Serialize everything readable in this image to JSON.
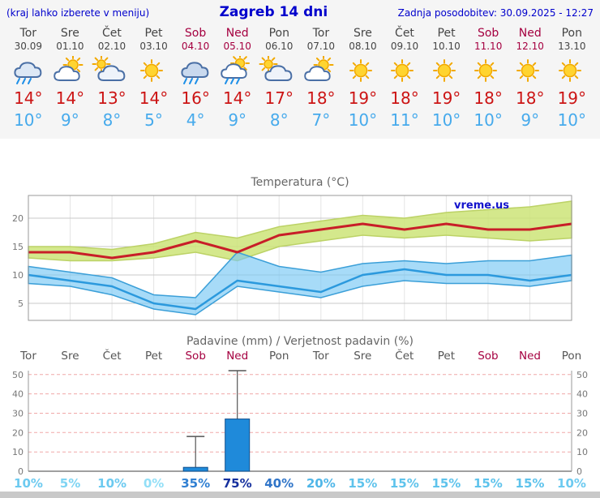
{
  "header": {
    "left_note": "(kraj lahko izberete v meniju)",
    "title": "Zagreb 14 dni",
    "updated": "Zadnja posodobitev: 30.09.2025 - 12:27"
  },
  "days": [
    {
      "name": "Tor",
      "date": "30.09",
      "icon": "rain-cloud",
      "tmax": "14°",
      "tmin": "10°",
      "weekend": false
    },
    {
      "name": "Sre",
      "date": "01.10",
      "icon": "partly-sunny",
      "tmax": "14°",
      "tmin": "9°",
      "weekend": false
    },
    {
      "name": "Čet",
      "date": "02.10",
      "icon": "mostly-cloudy",
      "tmax": "13°",
      "tmin": "8°",
      "weekend": false
    },
    {
      "name": "Pet",
      "date": "03.10",
      "icon": "sunny",
      "tmax": "14°",
      "tmin": "5°",
      "weekend": false
    },
    {
      "name": "Sob",
      "date": "04.10",
      "icon": "rain",
      "tmax": "16°",
      "tmin": "4°",
      "weekend": true
    },
    {
      "name": "Ned",
      "date": "05.10",
      "icon": "showers",
      "tmax": "14°",
      "tmin": "9°",
      "weekend": true
    },
    {
      "name": "Pon",
      "date": "06.10",
      "icon": "mostly-cloudy",
      "tmax": "17°",
      "tmin": "8°",
      "weekend": false
    },
    {
      "name": "Tor",
      "date": "07.10",
      "icon": "partly-sunny",
      "tmax": "18°",
      "tmin": "7°",
      "weekend": false
    },
    {
      "name": "Sre",
      "date": "08.10",
      "icon": "sunny",
      "tmax": "19°",
      "tmin": "10°",
      "weekend": false
    },
    {
      "name": "Čet",
      "date": "09.10",
      "icon": "sunny",
      "tmax": "18°",
      "tmin": "11°",
      "weekend": false
    },
    {
      "name": "Pet",
      "date": "10.10",
      "icon": "sunny",
      "tmax": "19°",
      "tmin": "10°",
      "weekend": false
    },
    {
      "name": "Sob",
      "date": "11.10",
      "icon": "sunny",
      "tmax": "18°",
      "tmin": "10°",
      "weekend": true
    },
    {
      "name": "Ned",
      "date": "12.10",
      "icon": "sunny",
      "tmax": "18°",
      "tmin": "9°",
      "weekend": true
    },
    {
      "name": "Pon",
      "date": "13.10",
      "icon": "sunny",
      "tmax": "19°",
      "tmin": "10°",
      "weekend": false
    }
  ],
  "chart_data": [
    {
      "type": "line",
      "title": "Temperatura (°C)",
      "watermark": "vreme.us",
      "x_labels": [
        "Tor",
        "Sre",
        "Čet",
        "Pet",
        "Sob",
        "Ned",
        "Pon",
        "Tor",
        "Sre",
        "Čet",
        "Pet",
        "Sob",
        "Ned",
        "Pon"
      ],
      "ylim": [
        2,
        24
      ],
      "yticks": [
        5,
        10,
        15,
        20
      ],
      "series": [
        {
          "name": "max-temperature",
          "color": "#c81e28",
          "width": 3,
          "values": [
            14,
            14,
            13,
            14,
            16,
            14,
            17,
            18,
            19,
            18,
            19,
            18,
            18,
            19
          ]
        },
        {
          "name": "min-temperature",
          "color": "#2b99dd",
          "width": 2.5,
          "values": [
            10,
            9,
            8,
            5,
            4,
            9,
            8,
            7,
            10,
            11,
            10,
            10,
            9,
            10
          ]
        }
      ],
      "bands": [
        {
          "name": "max-range",
          "fill": "rgba(205,228,120,0.85)",
          "edge": "#bcd266",
          "upper": [
            15,
            15,
            14.5,
            15.5,
            17.5,
            16.5,
            18.5,
            19.5,
            20.5,
            20,
            21,
            21.5,
            22,
            23
          ],
          "lower": [
            13,
            12.5,
            12.5,
            13,
            14,
            12.5,
            15,
            16,
            17,
            16.5,
            17,
            16.5,
            16,
            16.5
          ]
        },
        {
          "name": "min-range",
          "fill": "rgba(120,200,245,0.65)",
          "edge": "#3b9fd8",
          "upper": [
            11.5,
            10.5,
            9.5,
            6.5,
            6,
            14,
            11.5,
            10.5,
            12,
            12.5,
            12,
            12.5,
            12.5,
            13.5
          ],
          "lower": [
            8.5,
            8,
            6.5,
            4,
            3,
            8,
            7,
            6,
            8,
            9,
            8.5,
            8.5,
            8,
            9
          ]
        }
      ]
    },
    {
      "type": "bar",
      "title": "Padavine (mm) / Verjetnost padavin (%)",
      "x_labels": [
        "Tor",
        "Sre",
        "Čet",
        "Pet",
        "Sob",
        "Ned",
        "Pon",
        "Tor",
        "Sre",
        "Čet",
        "Pet",
        "Sob",
        "Ned",
        "Pon"
      ],
      "ylim": [
        0,
        52
      ],
      "yticks": [
        0,
        10,
        20,
        30,
        40,
        50
      ],
      "bar_color": "#1f8ada",
      "bar_edge": "#0f4e8c",
      "values": [
        0,
        0,
        0,
        0,
        2,
        27,
        0,
        0,
        0,
        0,
        0,
        0,
        0,
        0
      ],
      "whiskers": [
        {
          "day_index": 4,
          "top": 18
        },
        {
          "day_index": 5,
          "top": 52
        }
      ],
      "probabilities": [
        {
          "label": "10%",
          "color": "#6ccaf0"
        },
        {
          "label": "5%",
          "color": "#7ed4f3"
        },
        {
          "label": "10%",
          "color": "#6ccaf0"
        },
        {
          "label": "0%",
          "color": "#92dff7"
        },
        {
          "label": "35%",
          "color": "#2f7fd2"
        },
        {
          "label": "75%",
          "color": "#15309e"
        },
        {
          "label": "40%",
          "color": "#2f74c8"
        },
        {
          "label": "20%",
          "color": "#4fb6e8"
        },
        {
          "label": "15%",
          "color": "#5ec3ec"
        },
        {
          "label": "15%",
          "color": "#5ec3ec"
        },
        {
          "label": "15%",
          "color": "#5ec3ec"
        },
        {
          "label": "15%",
          "color": "#5ec3ec"
        },
        {
          "label": "15%",
          "color": "#5ec3ec"
        },
        {
          "label": "10%",
          "color": "#6ccaf0"
        }
      ]
    }
  ]
}
